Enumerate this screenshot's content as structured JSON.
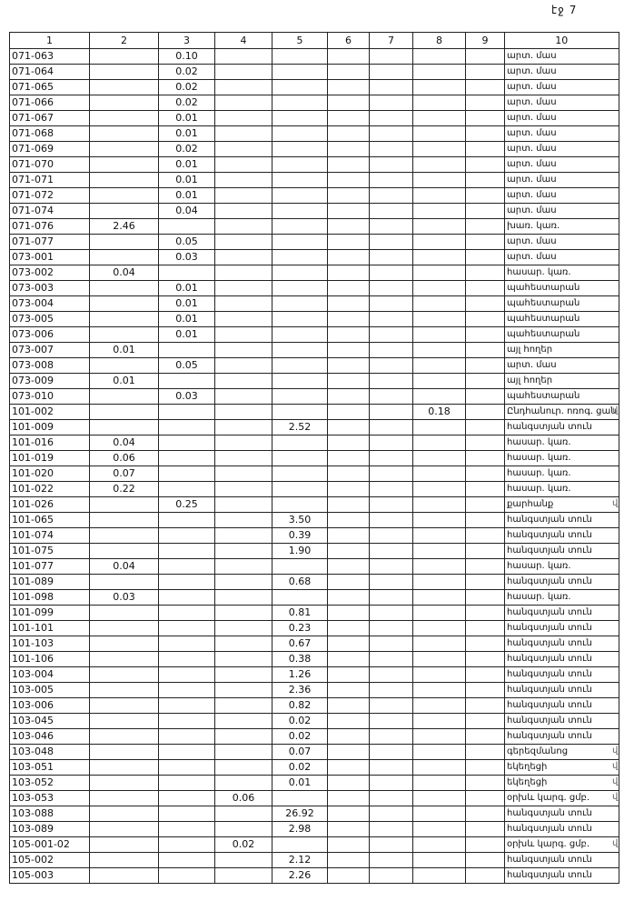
{
  "page": {
    "number": "էջ 7"
  },
  "table": {
    "columns": [
      "1",
      "2",
      "3",
      "4",
      "5",
      "6",
      "7",
      "8",
      "9",
      "10"
    ],
    "rows": [
      {
        "c1": "071-063",
        "c3": "0.10",
        "c10": "արտ. մաս"
      },
      {
        "c1": "071-064",
        "c3": "0.02",
        "c10": "արտ. մաս"
      },
      {
        "c1": "071-065",
        "c3": "0.02",
        "c10": "արտ. մաս"
      },
      {
        "c1": "071-066",
        "c3": "0.02",
        "c10": "արտ. մաս"
      },
      {
        "c1": "071-067",
        "c3": "0.01",
        "c10": "արտ. մաս"
      },
      {
        "c1": "071-068",
        "c3": "0.01",
        "c10": "արտ. մաս"
      },
      {
        "c1": "071-069",
        "c3": "0.02",
        "c10": "արտ. մաս"
      },
      {
        "c1": "071-070",
        "c3": "0.01",
        "c10": "արտ. մաս"
      },
      {
        "c1": "071-071",
        "c3": "0.01",
        "c10": "արտ. մաս"
      },
      {
        "c1": "071-072",
        "c3": "0.01",
        "c10": "արտ. մաս"
      },
      {
        "c1": "071-074",
        "c3": "0.04",
        "c10": "արտ. մաս"
      },
      {
        "c1": "071-076",
        "c2": "2.46",
        "c10": "խառ. կառ."
      },
      {
        "c1": "071-077",
        "c3": "0.05",
        "c10": "արտ. մաս"
      },
      {
        "c1": "073-001",
        "c3": "0.03",
        "c10": "արտ. մաս"
      },
      {
        "c1": "073-002",
        "c2": "0.04",
        "c10": "հասար. կառ."
      },
      {
        "c1": "073-003",
        "c3": "0.01",
        "c10": "պահեստարան"
      },
      {
        "c1": "073-004",
        "c3": "0.01",
        "c10": "պահեստարան"
      },
      {
        "c1": "073-005",
        "c3": "0.01",
        "c10": "պահեստարան"
      },
      {
        "c1": "073-006",
        "c3": "0.01",
        "c10": "պահեստարան"
      },
      {
        "c1": "073-007",
        "c2": "0.01",
        "c10": "այլ հողեր"
      },
      {
        "c1": "073-008",
        "c3": "0.05",
        "c10": "արտ. մաս"
      },
      {
        "c1": "073-009",
        "c2": "0.01",
        "c10": "այլ հողեր"
      },
      {
        "c1": "073-010",
        "c3": "0.03",
        "c10": "պահեստարան"
      },
      {
        "c1": "101-002",
        "c8": "0.18",
        "c10": "Ընդհանուր. ոռոգ. ցան",
        "note": "վ"
      },
      {
        "c1": "101-009",
        "c5": "2.52",
        "c10": "հանգստյան տուն"
      },
      {
        "c1": "101-016",
        "c2": "0.04",
        "c10": "հասար. կառ."
      },
      {
        "c1": "101-019",
        "c2": "0.06",
        "c10": "հասար. կառ."
      },
      {
        "c1": "101-020",
        "c2": "0.07",
        "c10": "հասար. կառ."
      },
      {
        "c1": "101-022",
        "c2": "0.22",
        "c10": "հասար. կառ."
      },
      {
        "c1": "101-026",
        "c3": "0.25",
        "c10": "քարհանք",
        "note": "վ"
      },
      {
        "c1": "101-065",
        "c5": "3.50",
        "c10": "հանգստյան տուն"
      },
      {
        "c1": "101-074",
        "c5": "0.39",
        "c10": "հանգստյան տուն"
      },
      {
        "c1": "101-075",
        "c5": "1.90",
        "c10": "հանգստյան տուն"
      },
      {
        "c1": "101-077",
        "c2": "0.04",
        "c10": "հասար. կառ."
      },
      {
        "c1": "101-089",
        "c5": "0.68",
        "c10": "հանգստյան տուն"
      },
      {
        "c1": "101-098",
        "c2": "0.03",
        "c10": "հասար. կառ."
      },
      {
        "c1": "101-099",
        "c5": "0.81",
        "c10": "հանգստյան տուն"
      },
      {
        "c1": "101-101",
        "c5": "0.23",
        "c10": "հանգստյան տուն"
      },
      {
        "c1": "101-103",
        "c5": "0.67",
        "c10": "հանգստյան տուն"
      },
      {
        "c1": "101-106",
        "c5": "0.38",
        "c10": "հանգստյան տուն"
      },
      {
        "c1": "103-004",
        "c5": "1.26",
        "c10": "հանգստյան տուն"
      },
      {
        "c1": "103-005",
        "c5": "2.36",
        "c10": "հանգստյան տուն"
      },
      {
        "c1": "103-006",
        "c5": "0.82",
        "c10": "հանգստյան տուն"
      },
      {
        "c1": "103-045",
        "c5": "0.02",
        "c10": "հանգստյան տուն"
      },
      {
        "c1": "103-046",
        "c5": "0.02",
        "c10": "հանգստյան տուն"
      },
      {
        "c1": "103-048",
        "c5": "0.07",
        "c10": "գերեզմանոց",
        "note": "վ"
      },
      {
        "c1": "103-051",
        "c5": "0.02",
        "c10": "եկեղեցի",
        "note": "վ"
      },
      {
        "c1": "103-052",
        "c5": "0.01",
        "c10": "եկեղեցի",
        "note": "վ"
      },
      {
        "c1": "103-053",
        "c4": "0.06",
        "c10": "օրխև կարգ. ցմբ.",
        "note": "վ"
      },
      {
        "c1": "103-088",
        "c5": "26.92",
        "c10": "հանգստյան տուն"
      },
      {
        "c1": "103-089",
        "c5": "2.98",
        "c10": "հանգստյան տուն"
      },
      {
        "c1": "105-001-02",
        "c4": "0.02",
        "c10": "օրխև կարգ. ցմբ.",
        "note": "վ"
      },
      {
        "c1": "105-002",
        "c5": "2.12",
        "c10": "հանգստյան տուն"
      },
      {
        "c1": "105-003",
        "c5": "2.26",
        "c10": "հանգստյան տուն"
      }
    ]
  }
}
